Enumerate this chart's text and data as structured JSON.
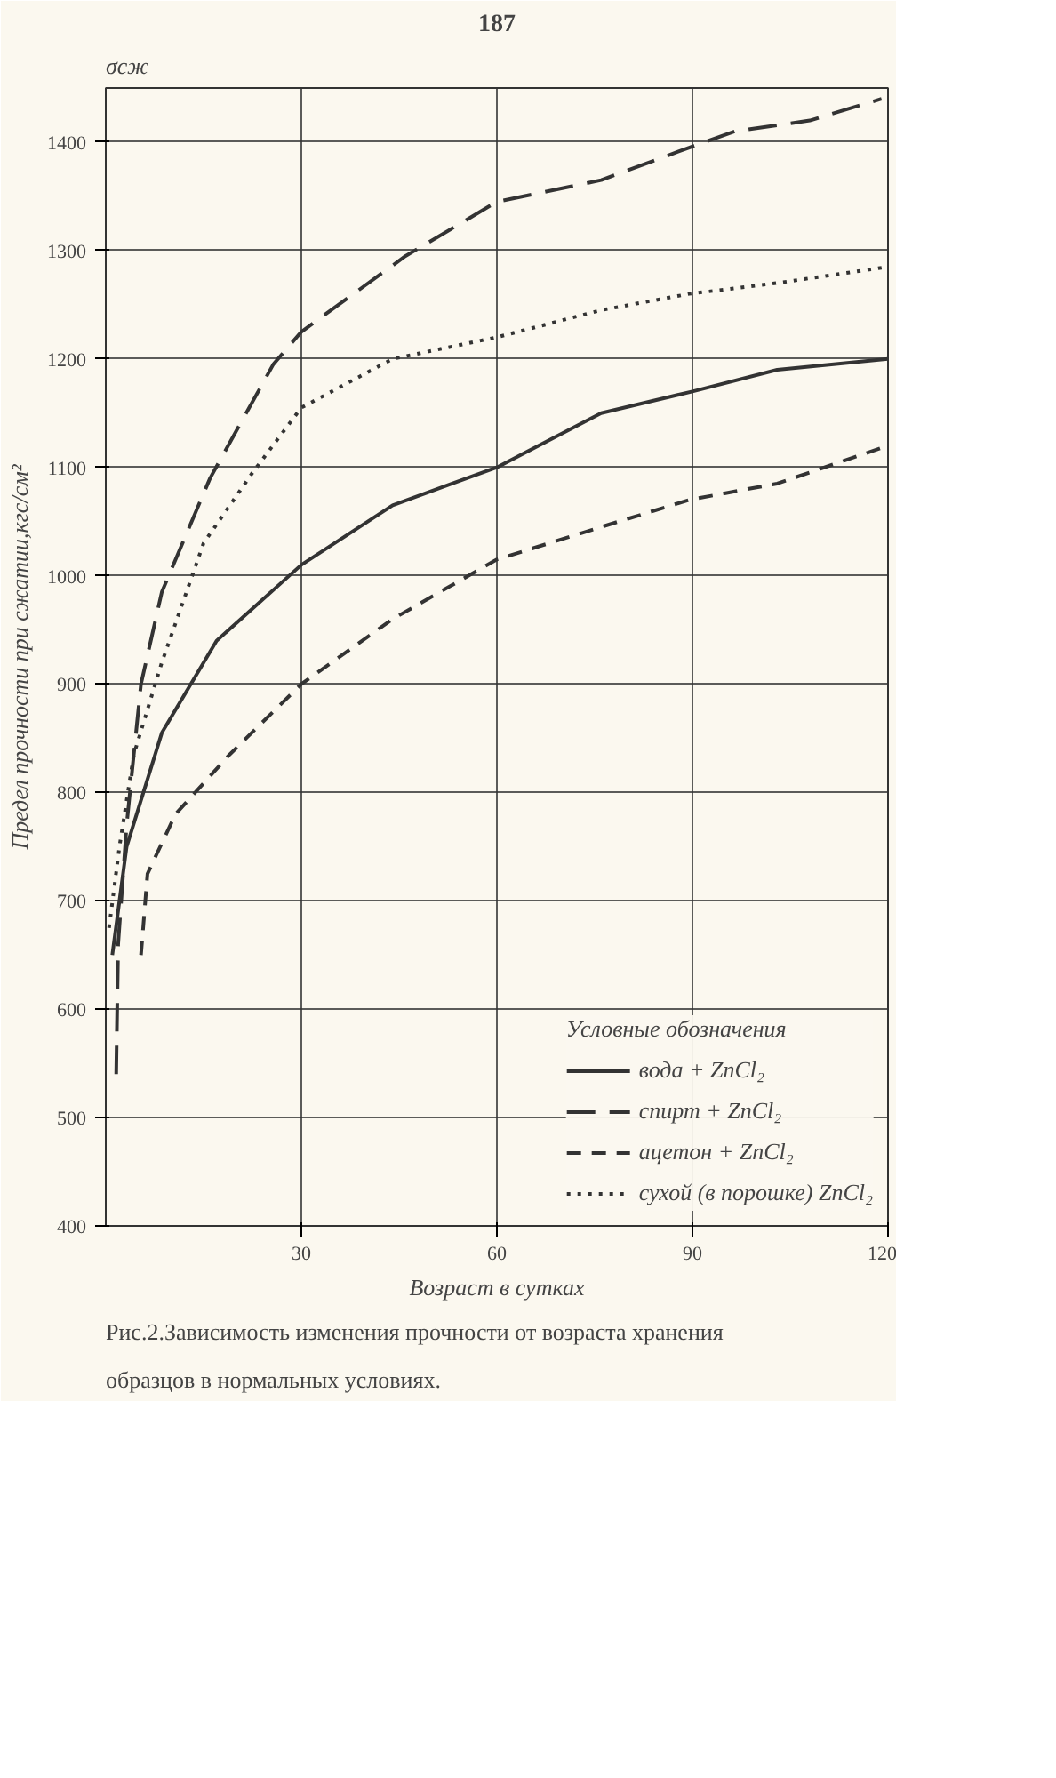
{
  "chart_data": {
    "type": "line",
    "title": null,
    "xlabel": "Возраст в сутках",
    "ylabel": "Предел прочности при сжатии,кгс/см²",
    "legend_title": "Условные обозначения",
    "annotations": [
      "187",
      "σсж",
      "Рис.2.Зависимость изменения прочности от возраста хранения образцов в нормальных условиях."
    ],
    "xlim": [
      0,
      120
    ],
    "xticks": [
      30,
      60,
      90,
      120
    ],
    "ylim": [
      400,
      1450
    ],
    "yticks": [
      400,
      500,
      600,
      700,
      800,
      900,
      1000,
      1100,
      1200,
      1300,
      1400
    ],
    "grid": true,
    "legend": "bottom right",
    "marker": "none",
    "series": [
      {
        "name": "вода + ZnCl₂",
        "color": "#333333",
        "line_style": "solid",
        "x": [
          1,
          3.2,
          8.6,
          17,
          30,
          44,
          60,
          76,
          90,
          103,
          120
        ],
        "values": [
          650,
          750,
          855,
          940,
          1010,
          1065,
          1100,
          1150,
          1170,
          1190,
          1200
        ]
      },
      {
        "name": "спирт + ZnCl₂",
        "color": "#333333",
        "line_style": "dashed",
        "x": [
          1.6,
          1.9,
          3.2,
          5.4,
          8.6,
          16,
          25.7,
          30,
          46,
          60,
          76,
          89.5,
          96.5,
          108,
          119
        ],
        "values": [
          540,
          660,
          770,
          900,
          985,
          1090,
          1195,
          1225,
          1295,
          1345,
          1365,
          1395,
          1410,
          1420,
          1440
        ]
      },
      {
        "name": "ацетон + ZnCl₂",
        "color": "#333333",
        "line_style": "dashed",
        "x": [
          5.4,
          6.4,
          10.7,
          19,
          30,
          44,
          60,
          76,
          89.5,
          103,
          120
        ],
        "values": [
          650,
          725,
          780,
          835,
          900,
          960,
          1015,
          1045,
          1070,
          1085,
          1120
        ]
      },
      {
        "name": "сухой (в порошке) ZnCl₂",
        "color": "#333333",
        "line_style": "dotted",
        "x": [
          0.5,
          2.1,
          4.3,
          8.6,
          15,
          22.5,
          30,
          44,
          60,
          76,
          89.5,
          103,
          120
        ],
        "values": [
          675,
          750,
          835,
          920,
          1030,
          1095,
          1155,
          1200,
          1220,
          1245,
          1260,
          1270,
          1285
        ]
      }
    ]
  }
}
